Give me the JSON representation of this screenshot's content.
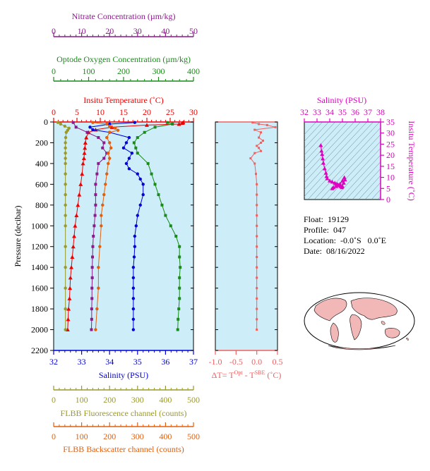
{
  "colors": {
    "nitrate": "#8b1a8b",
    "oxygen": "#1a8a1a",
    "temperature": "#ee0000",
    "salinity": "#0000dd",
    "fluorescence": "#9a9a2a",
    "backscatter": "#e06010",
    "dt": "#f06060",
    "ts": "#e000c0",
    "plot_bg": "#cdeef8"
  },
  "axes_text": {
    "nitrate_label": "Nitrate Concentration (µm/kg)",
    "oxygen_label": "Optode Oxygen Concentration (µm/kg)",
    "temperature_label": "Insitu Temperature (˚C)",
    "salinity_label": "Salinity (PSU)",
    "pressure_label": "Pressure (decibar)",
    "fluorescence_label": "FLBB Fluorescence channel (counts)",
    "backscatter_label": "FLBB Backscatter channel (counts)",
    "dt_label_prefix": "ΔT= T",
    "dt_label_sup1": "Opt",
    "dt_label_mid": " - T",
    "dt_label_sup2": "SBE",
    "dt_label_suffix": " (˚C)",
    "ts_salinity_label": "Salinity (PSU)",
    "ts_temperature_label": "Insitu Temperature (˚C)"
  },
  "info": {
    "float": "Float:  19129",
    "profile": "Profile:  047",
    "location": "Location:  -0.0˚S   0.0˚E",
    "date": "Date:  08/16/2022"
  },
  "chart_data": [
    {
      "type": "line",
      "name_ref": "main-profile",
      "ylabel": "Pressure (decibar)",
      "ylim": [
        2200,
        0
      ],
      "yticks": [
        "0",
        "200",
        "400",
        "600",
        "800",
        "1000",
        "1200",
        "1400",
        "1600",
        "1800",
        "2000",
        "2200"
      ],
      "axes": {
        "temperature": {
          "range": [
            0,
            30
          ],
          "ticks": [
            "0",
            "5",
            "10",
            "15",
            "20",
            "25",
            "30"
          ]
        },
        "salinity": {
          "range": [
            32,
            37
          ],
          "ticks": [
            "32",
            "33",
            "34",
            "35",
            "36",
            "37"
          ]
        },
        "nitrate": {
          "range": [
            0,
            50
          ],
          "ticks": [
            "0",
            "10",
            "20",
            "30",
            "40",
            "50"
          ]
        },
        "oxygen": {
          "range": [
            0,
            400
          ],
          "ticks": [
            "0",
            "100",
            "200",
            "300",
            "400"
          ]
        },
        "fluorescence": {
          "range": [
            0,
            500
          ],
          "ticks": [
            "0",
            "100",
            "200",
            "300",
            "400",
            "500"
          ]
        },
        "backscatter": {
          "range": [
            0,
            500
          ],
          "ticks": [
            "0",
            "100",
            "200",
            "300",
            "400",
            "500"
          ]
        }
      },
      "series": [
        {
          "key": "temperature",
          "marker": "triangle",
          "axis": "temperature",
          "p": [
            5,
            10,
            20,
            30,
            50,
            75,
            100,
            150,
            200,
            250,
            300,
            350,
            400,
            500,
            600,
            700,
            800,
            900,
            1000,
            1100,
            1200,
            1300,
            1400,
            1500,
            1600,
            1700,
            1800,
            1900,
            2000
          ],
          "v": [
            27.8,
            27.6,
            26.9,
            20.0,
            12.5,
            9.0,
            7.5,
            7.0,
            6.8,
            6.7,
            6.6,
            6.5,
            6.3,
            6.1,
            5.8,
            5.5,
            5.2,
            4.9,
            4.6,
            4.4,
            4.2,
            4.0,
            3.8,
            3.6,
            3.5,
            3.4,
            3.2,
            3.1,
            3.0
          ]
        },
        {
          "key": "salinity",
          "marker": "circle",
          "axis": "salinity",
          "p": [
            5,
            20,
            50,
            75,
            100,
            150,
            200,
            250,
            300,
            350,
            400,
            450,
            500,
            550,
            600,
            700,
            800,
            900,
            1000,
            1100,
            1200,
            1300,
            1400,
            1500,
            1600,
            1700,
            1800,
            1900,
            2000
          ],
          "v": [
            34.9,
            34.0,
            33.3,
            33.4,
            34.0,
            34.7,
            34.6,
            34.5,
            34.8,
            34.7,
            34.6,
            34.7,
            35.0,
            35.1,
            35.2,
            35.2,
            35.1,
            35.0,
            34.95,
            34.9,
            34.9,
            34.88,
            34.85,
            34.85,
            34.85,
            34.85,
            34.85,
            34.85,
            34.85
          ]
        },
        {
          "key": "nitrate",
          "marker": "square",
          "axis": "nitrate",
          "p": [
            5,
            50,
            100,
            150,
            200,
            250,
            300,
            350,
            400,
            500,
            600,
            700,
            800,
            900,
            1000,
            1100,
            1200,
            1300,
            1400,
            1500,
            1600,
            1700,
            1800,
            1900,
            2000
          ],
          "v": [
            7,
            8,
            12,
            16,
            18,
            17.5,
            19,
            18,
            16,
            15.5,
            15,
            15,
            15,
            14.8,
            14.5,
            14.2,
            14,
            13.9,
            13.8,
            13.8,
            13.7,
            13.7,
            13.6,
            13.6,
            13.5
          ]
        },
        {
          "key": "oxygen",
          "marker": "square",
          "axis": "oxygen",
          "p": [
            5,
            20,
            50,
            100,
            150,
            200,
            250,
            300,
            400,
            500,
            600,
            700,
            800,
            900,
            1000,
            1100,
            1200,
            1300,
            1400,
            1500,
            1600,
            1700,
            1800,
            1900,
            2000
          ],
          "v": [
            325,
            340,
            290,
            260,
            240,
            230,
            235,
            240,
            270,
            280,
            290,
            300,
            310,
            320,
            335,
            350,
            360,
            360,
            362,
            360,
            360,
            360,
            358,
            356,
            355
          ]
        },
        {
          "key": "fluorescence",
          "marker": "circle",
          "axis": "fluorescence",
          "p": [
            5,
            20,
            40,
            60,
            80,
            100,
            150,
            200,
            250,
            300,
            350,
            400,
            500,
            600,
            700,
            800,
            900,
            1000,
            1200,
            1400,
            1600,
            1800,
            2000
          ],
          "v": [
            15,
            25,
            40,
            55,
            50,
            45,
            43,
            42,
            42,
            42,
            42,
            42,
            42,
            42,
            42,
            42,
            42,
            42,
            42,
            42,
            42,
            42,
            42
          ]
        },
        {
          "key": "backscatter",
          "marker": "circle",
          "axis": "backscatter",
          "p": [
            5,
            20,
            40,
            60,
            80,
            100,
            150,
            200,
            250,
            300,
            350,
            400,
            500,
            600,
            700,
            800,
            900,
            1000,
            1200,
            1400,
            1600,
            1800,
            2000
          ],
          "v": [
            140,
            190,
            200,
            220,
            230,
            200,
            190,
            200,
            205,
            195,
            200,
            195,
            190,
            185,
            180,
            175,
            170,
            170,
            165,
            160,
            160,
            155,
            150
          ]
        }
      ]
    },
    {
      "type": "line",
      "name_ref": "delta-t",
      "xlim": [
        -1.0,
        0.5
      ],
      "xticks": [
        "-1.0",
        "-0.5",
        "0.0",
        "0.5"
      ],
      "p": [
        5,
        20,
        30,
        50,
        75,
        100,
        150,
        180,
        200,
        230,
        250,
        280,
        300,
        350,
        400,
        500,
        600,
        700,
        800,
        900,
        1000,
        1100,
        1200,
        1300,
        1400,
        1500,
        1600,
        1700,
        1800,
        1900,
        2000
      ],
      "v": [
        -0.1,
        0.05,
        0.25,
        0.45,
        -0.05,
        0.1,
        0.05,
        0.15,
        0.1,
        0.0,
        0.05,
        0.1,
        -0.05,
        -0.15,
        -0.05,
        -0.02,
        0.0,
        0.0,
        0.0,
        0.0,
        0.0,
        0.0,
        0.0,
        0.0,
        0.0,
        0.0,
        0.0,
        0.0,
        0.0,
        0.0,
        0.0
      ]
    },
    {
      "type": "scatter",
      "name_ref": "ts-diagram",
      "xlabel": "Salinity (PSU)",
      "ylabel": "Insitu Temperature (˚C)",
      "xlim": [
        32,
        38
      ],
      "ylim": [
        0,
        35
      ],
      "xticks": [
        "32",
        "33",
        "34",
        "35",
        "36",
        "37",
        "38"
      ],
      "yticks": [
        "0",
        "5",
        "10",
        "15",
        "20",
        "25",
        "30",
        "35"
      ],
      "s": [
        33.3,
        33.35,
        33.4,
        33.45,
        33.5,
        33.6,
        33.7,
        33.75,
        33.8,
        34.0,
        34.2,
        34.4,
        34.5,
        34.6,
        34.7,
        34.8,
        34.85,
        34.9,
        34.95,
        35.0,
        35.1,
        35.2,
        35.15,
        35.0,
        34.8,
        34.5,
        34.3,
        34.2
      ],
      "t": [
        24.5,
        22.0,
        20.5,
        18.5,
        16.5,
        14.0,
        12.0,
        10.5,
        9.5,
        8.5,
        8.0,
        7.5,
        7.0,
        7.0,
        6.5,
        6.5,
        6.0,
        6.0,
        5.5,
        6.0,
        7.5,
        9.0,
        10.0,
        8.5,
        7.0,
        6.0,
        5.5,
        5.0
      ]
    }
  ]
}
